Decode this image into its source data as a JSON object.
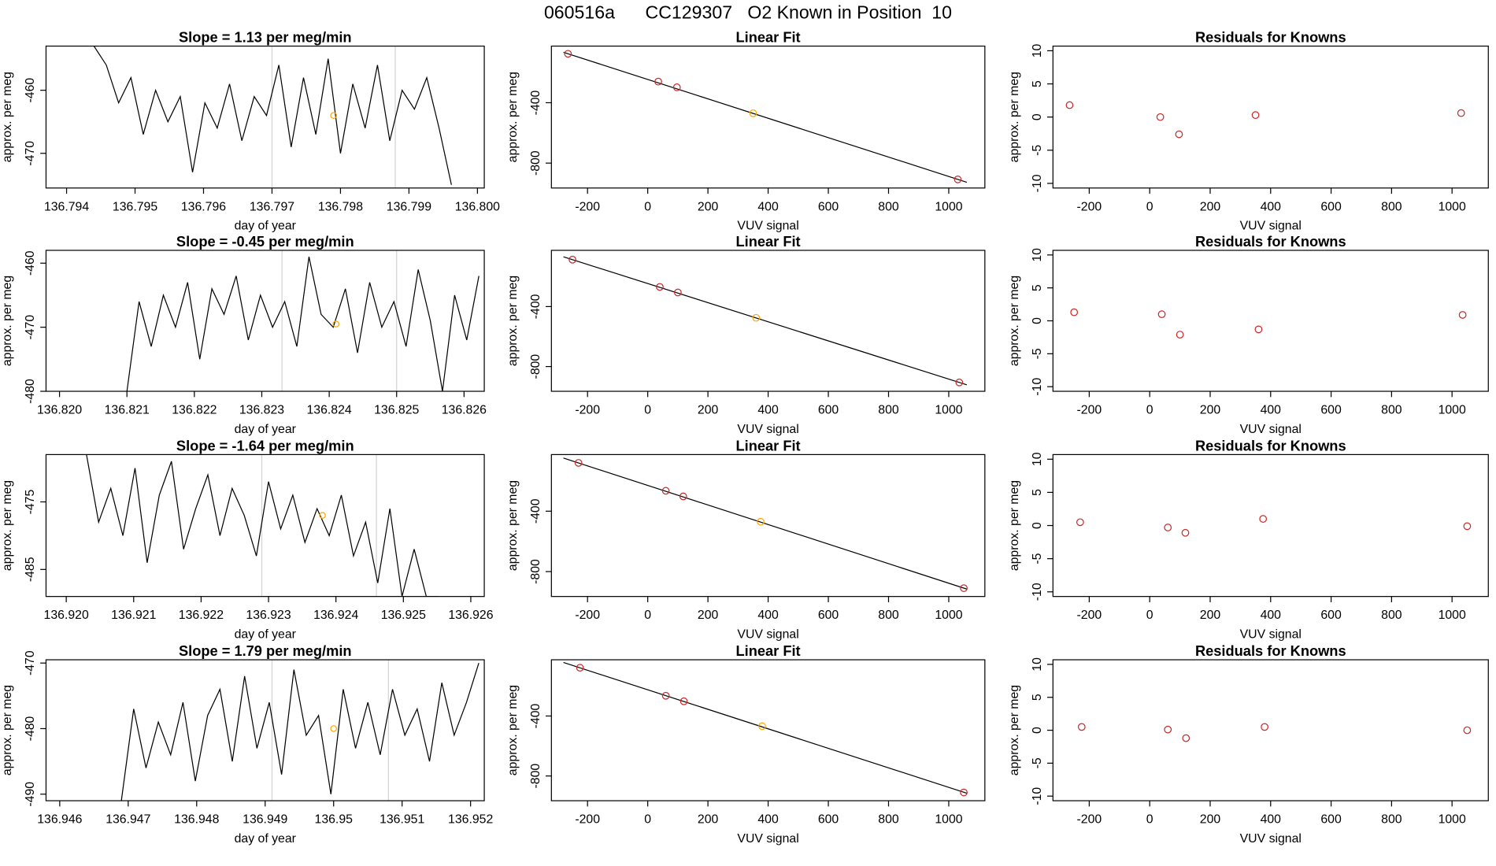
{
  "title": "060516a      CC129307   O2 Known in Position  10",
  "chart_data": [
    {
      "type": "line",
      "title": "Slope =  1.13  per meg/min",
      "xlabel": "day of year",
      "ylabel": "approx. per meg",
      "x": [
        136.7944,
        136.79458,
        136.79476,
        136.79494,
        136.79512,
        136.7953,
        136.79548,
        136.79566,
        136.79584,
        136.79602,
        136.7962,
        136.79638,
        136.79656,
        136.79674,
        136.79692,
        136.7971,
        136.79728,
        136.79746,
        136.79764,
        136.79782,
        136.798,
        136.79818,
        136.79836,
        136.79854,
        136.79872,
        136.7989,
        136.79908,
        136.79926,
        136.79944,
        136.79962
      ],
      "values": [
        -453,
        -456,
        -462,
        -458,
        -467,
        -460,
        -465,
        -461,
        -473,
        -462,
        -466,
        -459,
        -468,
        -461,
        -464,
        -456,
        -469,
        -458,
        -467,
        -455,
        -470,
        -459,
        -466,
        -456,
        -468,
        -460,
        -463,
        -458,
        -466,
        -475
      ],
      "color": "#000000",
      "xlim": [
        136.7937,
        136.8001
      ],
      "ylim": [
        -475.5,
        -453
      ],
      "xticks": [
        136.794,
        136.795,
        136.796,
        136.797,
        136.798,
        136.799,
        {
          "value": 136.8,
          "label": "136.800"
        }
      ],
      "yticks": [
        -470,
        -460
      ],
      "vlines": [
        136.797,
        136.7988
      ],
      "vline_color": "#d3d3d3",
      "highlight": {
        "x": 136.7979,
        "y": -464,
        "color": "#ffa500"
      }
    },
    {
      "type": "scatter",
      "title": "Linear Fit",
      "xlabel": "VUV signal",
      "ylabel": "approx. per meg",
      "x": [
        -265,
        35,
        97,
        350,
        1030
      ],
      "values": [
        -76,
        -260,
        -298,
        -470,
        -908
      ],
      "colors": [
        "#cd2626",
        "#cd2626",
        "#cd2626",
        "#ffa500",
        "#cd2626"
      ],
      "fit": {
        "x": [
          -280,
          1060
        ],
        "y": [
          -66,
          -927
        ]
      },
      "fit_color": "#000000",
      "xlim": [
        -320,
        1120
      ],
      "ylim": [
        -965,
        -25
      ],
      "xticks": [
        -200,
        0,
        200,
        400,
        600,
        800,
        1000
      ],
      "yticks": [
        -800,
        -400
      ]
    },
    {
      "type": "scatter",
      "title": "Residuals for Knowns",
      "xlabel": "VUV signal",
      "ylabel": "approx. per meg",
      "x": [
        -265,
        35,
        97,
        350,
        1030
      ],
      "values": [
        1.8,
        0,
        -2.6,
        0.3,
        0.6
      ],
      "colors": [
        "#cd2626",
        "#cd2626",
        "#cd2626",
        "#cd2626",
        "#cd2626"
      ],
      "xlim": [
        -320,
        1120
      ],
      "ylim": [
        -10.7,
        10.7
      ],
      "xticks": [
        -200,
        0,
        200,
        400,
        600,
        800,
        1000
      ],
      "yticks": [
        -10,
        -5,
        0,
        5,
        10
      ]
    },
    {
      "type": "line",
      "title": "Slope =  -0.45  per meg/min",
      "xlabel": "day of year",
      "ylabel": "approx. per meg",
      "x": [
        136.821,
        136.82118,
        136.82136,
        136.82154,
        136.82172,
        136.8219,
        136.82208,
        136.82226,
        136.82244,
        136.82262,
        136.8228,
        136.82298,
        136.82316,
        136.82334,
        136.82352,
        136.8237,
        136.82388,
        136.82406,
        136.82424,
        136.82442,
        136.8246,
        136.82478,
        136.82496,
        136.82514,
        136.82532,
        136.8255,
        136.82568,
        136.82586,
        136.82604,
        136.82622
      ],
      "values": [
        -480,
        -466,
        -473,
        -465,
        -470,
        -463,
        -475,
        -464,
        -468,
        -462,
        -472,
        -465,
        -470,
        -466,
        -473,
        -459,
        -468,
        -470,
        -464,
        -474,
        -463,
        -470,
        -466,
        -473,
        -461,
        -469,
        -480,
        -465,
        -472,
        -462
      ],
      "color": "#000000",
      "xlim": [
        136.8198,
        136.8263
      ],
      "ylim": [
        -480,
        -458
      ],
      "xticks": [
        {
          "value": 136.82,
          "label": "136.820"
        },
        136.821,
        136.822,
        136.823,
        136.824,
        136.825,
        136.826
      ],
      "yticks": [
        -480,
        -470,
        -460
      ],
      "vlines": [
        136.8233,
        136.825
      ],
      "vline_color": "#d3d3d3",
      "highlight": {
        "x": 136.8241,
        "y": -469.5,
        "color": "#ffa500"
      }
    },
    {
      "type": "scatter",
      "title": "Linear Fit",
      "xlabel": "VUV signal",
      "ylabel": "approx. per meg",
      "x": [
        -250,
        40,
        100,
        360,
        1035
      ],
      "values": [
        -87,
        -269,
        -306,
        -475,
        -906
      ],
      "colors": [
        "#cd2626",
        "#cd2626",
        "#cd2626",
        "#ffa500",
        "#cd2626"
      ],
      "fit": {
        "x": [
          -280,
          1060
        ],
        "y": [
          -68,
          -922
        ]
      },
      "fit_color": "#000000",
      "xlim": [
        -320,
        1120
      ],
      "ylim": [
        -965,
        -25
      ],
      "xticks": [
        -200,
        0,
        200,
        400,
        600,
        800,
        1000
      ],
      "yticks": [
        -800,
        -400
      ]
    },
    {
      "type": "scatter",
      "title": "Residuals for Knowns",
      "xlabel": "VUV signal",
      "ylabel": "approx. per meg",
      "x": [
        -250,
        40,
        100,
        360,
        1035
      ],
      "values": [
        1.3,
        1,
        -2.1,
        -1.3,
        0.9
      ],
      "colors": [
        "#cd2626",
        "#cd2626",
        "#cd2626",
        "#cd2626",
        "#cd2626"
      ],
      "xlim": [
        -320,
        1120
      ],
      "ylim": [
        -10.7,
        10.7
      ],
      "xticks": [
        -200,
        0,
        200,
        400,
        600,
        800,
        1000
      ],
      "yticks": [
        -10,
        -5,
        0,
        5,
        10
      ]
    },
    {
      "type": "line",
      "title": "Slope =  -1.64  per meg/min",
      "xlabel": "day of year",
      "ylabel": "approx. per meg",
      "x": [
        136.9203,
        136.92048,
        136.92066,
        136.92084,
        136.92102,
        136.9212,
        136.92138,
        136.92156,
        136.92174,
        136.92192,
        136.9221,
        136.92228,
        136.92246,
        136.92264,
        136.92282,
        136.923,
        136.92318,
        136.92336,
        136.92354,
        136.92372,
        136.9239,
        136.92408,
        136.92426,
        136.92444,
        136.92462,
        136.9248,
        136.92498,
        136.92516,
        136.92534,
        136.92552
      ],
      "values": [
        -468,
        -478,
        -473,
        -480,
        -470,
        -484,
        -474,
        -469,
        -482,
        -476,
        -471,
        -480,
        -473,
        -477,
        -483,
        -472,
        -479,
        -474,
        -481,
        -476,
        -480,
        -474,
        -483,
        -478,
        -487,
        -476,
        -489,
        -482,
        -489,
        -489
      ],
      "color": "#000000",
      "xlim": [
        136.9197,
        136.9262
      ],
      "ylim": [
        -489,
        -468
      ],
      "xticks": [
        {
          "value": 136.92,
          "label": "136.920"
        },
        136.921,
        136.922,
        136.923,
        136.924,
        136.925,
        136.926
      ],
      "yticks": [
        -485,
        -475
      ],
      "vlines": [
        136.9229,
        136.9246
      ],
      "vline_color": "#d3d3d3",
      "highlight": {
        "x": 136.9238,
        "y": -477,
        "color": "#ffa500"
      }
    },
    {
      "type": "scatter",
      "title": "Linear Fit",
      "xlabel": "VUV signal",
      "ylabel": "approx. per meg",
      "x": [
        -230,
        60,
        118,
        375,
        1050
      ],
      "values": [
        -80,
        -265,
        -302,
        -470,
        -910
      ],
      "colors": [
        "#cd2626",
        "#cd2626",
        "#cd2626",
        "#ffa500",
        "#cd2626"
      ],
      "fit": {
        "x": [
          -280,
          1060
        ],
        "y": [
          -48,
          -916
        ]
      },
      "fit_color": "#000000",
      "xlim": [
        -320,
        1120
      ],
      "ylim": [
        -965,
        -25
      ],
      "xticks": [
        -200,
        0,
        200,
        400,
        600,
        800,
        1000
      ],
      "yticks": [
        -800,
        -400
      ]
    },
    {
      "type": "scatter",
      "title": "Residuals for Knowns",
      "xlabel": "VUV signal",
      "ylabel": "approx. per meg",
      "x": [
        -230,
        60,
        118,
        375,
        1050
      ],
      "values": [
        0.5,
        -0.3,
        -1.1,
        1,
        -0.1
      ],
      "colors": [
        "#cd2626",
        "#cd2626",
        "#cd2626",
        "#cd2626",
        "#cd2626"
      ],
      "xlim": [
        -320,
        1120
      ],
      "ylim": [
        -10.7,
        10.7
      ],
      "xticks": [
        -200,
        0,
        200,
        400,
        600,
        800,
        1000
      ],
      "yticks": [
        -10,
        -5,
        0,
        5,
        10
      ]
    },
    {
      "type": "line",
      "title": "Slope =  1.79  per meg/min",
      "xlabel": "day of year",
      "ylabel": "approx. per meg",
      "x": [
        136.9469,
        136.94708,
        136.94726,
        136.94744,
        136.94762,
        136.9478,
        136.94798,
        136.94816,
        136.94834,
        136.94852,
        136.9487,
        136.94888,
        136.94906,
        136.94924,
        136.94942,
        136.9496,
        136.94978,
        136.94996,
        136.95014,
        136.95032,
        136.9505,
        136.95068,
        136.95086,
        136.95104,
        136.95122,
        136.9514,
        136.95158,
        136.95176,
        136.95194,
        136.95212
      ],
      "values": [
        -491,
        -477,
        -486,
        -479,
        -484,
        -476,
        -488,
        -478,
        -474,
        -485,
        -472,
        -483,
        -476,
        -487,
        -471,
        -481,
        -478,
        -490,
        -474,
        -483,
        -476,
        -484,
        -474,
        -481,
        -477,
        -485,
        -473,
        -481,
        -476,
        -470
      ],
      "color": "#000000",
      "xlim": [
        136.9458,
        136.9522
      ],
      "ylim": [
        -491,
        -469.5
      ],
      "xticks": [
        136.946,
        136.947,
        136.948,
        136.949,
        136.95,
        136.951,
        136.952
      ],
      "yticks": [
        -490,
        -480,
        -470
      ],
      "vlines": [
        136.9491,
        136.9508
      ],
      "vline_color": "#d3d3d3",
      "highlight": {
        "x": 136.95,
        "y": -480,
        "color": "#ffa500"
      }
    },
    {
      "type": "scatter",
      "title": "Linear Fit",
      "xlabel": "VUV signal",
      "ylabel": "approx. per meg",
      "x": [
        -225,
        60,
        120,
        380,
        1050
      ],
      "values": [
        -78,
        -265,
        -302,
        -468,
        -910
      ],
      "colors": [
        "#cd2626",
        "#cd2626",
        "#cd2626",
        "#ffa500",
        "#cd2626"
      ],
      "fit": {
        "x": [
          -280,
          1060
        ],
        "y": [
          -43,
          -915
        ]
      },
      "fit_color": "#000000",
      "xlim": [
        -320,
        1120
      ],
      "ylim": [
        -965,
        -25
      ],
      "xticks": [
        -200,
        0,
        200,
        400,
        600,
        800,
        1000
      ],
      "yticks": [
        -800,
        -400
      ]
    },
    {
      "type": "scatter",
      "title": "Residuals for Knowns",
      "xlabel": "VUV signal",
      "ylabel": "approx. per meg",
      "x": [
        -225,
        60,
        120,
        380,
        1050
      ],
      "values": [
        0.5,
        0.1,
        -1.2,
        0.5,
        0
      ],
      "colors": [
        "#cd2626",
        "#cd2626",
        "#cd2626",
        "#cd2626",
        "#cd2626"
      ],
      "xlim": [
        -320,
        1120
      ],
      "ylim": [
        -10.7,
        10.7
      ],
      "xticks": [
        -200,
        0,
        200,
        400,
        600,
        800,
        1000
      ],
      "yticks": [
        -10,
        -5,
        0,
        5,
        10
      ]
    }
  ]
}
